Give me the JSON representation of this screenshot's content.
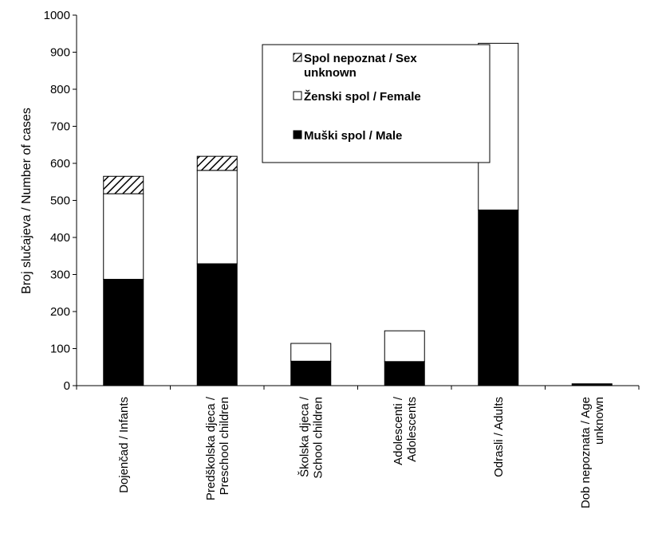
{
  "chart_data": {
    "type": "bar",
    "stacked": true,
    "title": "",
    "xlabel": "",
    "ylabel": "Broj slučajeva / Number of cases",
    "ylim": [
      0,
      1000
    ],
    "yticks": [
      0,
      100,
      200,
      300,
      400,
      500,
      600,
      700,
      800,
      900,
      1000
    ],
    "grid": false,
    "legend_position": "top-right",
    "categories": [
      [
        "Dojenčad / Infants"
      ],
      [
        "Predškolska djeca /",
        "Preschool children"
      ],
      [
        "Školska djeca /",
        "School children"
      ],
      [
        "Adolescenti /",
        "Adolescents"
      ],
      [
        "Odrasli / Adults"
      ],
      [
        "Dob nepoznata /  Age",
        "unknown"
      ]
    ],
    "series": [
      {
        "name": "Muški spol / Male",
        "fill": "#000000",
        "pattern": "solid",
        "values": [
          287,
          329,
          66,
          65,
          474,
          5
        ]
      },
      {
        "name": "Ženski spol / Female",
        "fill": "#ffffff",
        "pattern": "solid",
        "values": [
          231,
          252,
          48,
          83,
          450,
          0
        ]
      },
      {
        "name": "Spol nepoznat / Sex unknown",
        "fill": "#ffffff",
        "pattern": "hatch",
        "values": [
          47,
          38,
          0,
          0,
          0,
          0
        ]
      }
    ],
    "legend": [
      {
        "series": 2,
        "lines": [
          "Spol nepoznat / Sex",
          "unknown"
        ]
      },
      {
        "series": 1,
        "lines": [
          "Ženski spol / Female"
        ]
      },
      {
        "series": 0,
        "lines": [
          "Muški spol / Male"
        ]
      }
    ]
  }
}
